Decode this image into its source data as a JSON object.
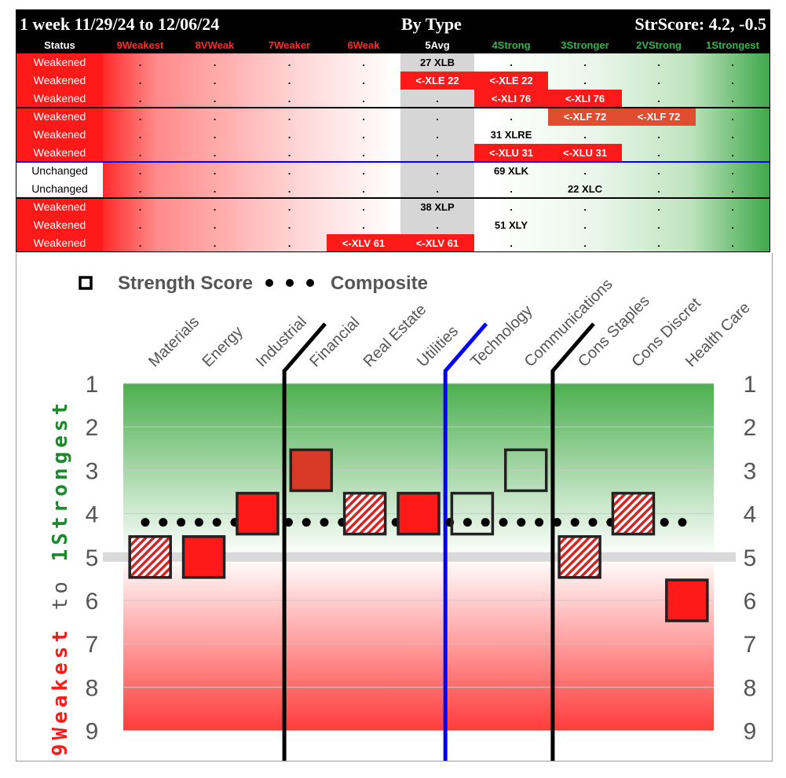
{
  "title": {
    "left": "1 week 11/29/24 to 12/06/24",
    "center": "By Type",
    "right": "StrScore: 4.2, -0.5"
  },
  "headers": [
    "Status",
    "9Weakest",
    "8VWeak",
    "7Weaker",
    "6Weak",
    "5Avg",
    "4Strong",
    "3Stronger",
    "2VStrong",
    "1Strongest"
  ],
  "header_colors": [
    "#ffffff",
    "#ff2a2a",
    "#ff2a2a",
    "#ff2a2a",
    "#ff2a2a",
    "#ffffff",
    "#2eb84d",
    "#2eb84d",
    "#2eb84d",
    "#2eb84d"
  ],
  "colors": {
    "weakened": "#ff1a1a",
    "unchanged": "#ffffff",
    "avg_col": "#d6d6d6",
    "highlight": "#ff1a1a",
    "highlight_mid": "#e24d32"
  },
  "rows": [
    {
      "status": "Weakened",
      "cells": [
        {
          "col": 5,
          "text": "27 XLB"
        }
      ]
    },
    {
      "status": "Weakened",
      "cells": [
        {
          "col": 5,
          "text": "<-XLE 22",
          "hl": true
        },
        {
          "col": 6,
          "text": "<-XLE 22",
          "hl": true
        }
      ]
    },
    {
      "status": "Weakened",
      "cells": [
        {
          "col": 6,
          "text": "<-XLI 76",
          "hl": true
        },
        {
          "col": 7,
          "text": "<-XLI 76",
          "hl": true
        }
      ]
    },
    {
      "status": "Weakened",
      "cells": [
        {
          "col": 7,
          "text": "<-XLF 72",
          "hl": true,
          "mid": true
        },
        {
          "col": 8,
          "text": "<-XLF 72",
          "hl": true,
          "mid": true
        }
      ]
    },
    {
      "status": "Weakened",
      "cells": [
        {
          "col": 6,
          "text": "31 XLRE"
        }
      ]
    },
    {
      "status": "Weakened",
      "cells": [
        {
          "col": 6,
          "text": "<-XLU 31",
          "hl": true
        },
        {
          "col": 7,
          "text": "<-XLU 31",
          "hl": true
        }
      ]
    },
    {
      "status": "Unchanged",
      "cells": [
        {
          "col": 6,
          "text": "69 XLK"
        }
      ]
    },
    {
      "status": "Unchanged",
      "cells": [
        {
          "col": 7,
          "text": "22 XLC"
        }
      ]
    },
    {
      "status": "Weakened",
      "cells": [
        {
          "col": 5,
          "text": "38 XLP"
        }
      ]
    },
    {
      "status": "Weakened",
      "cells": [
        {
          "col": 6,
          "text": "51 XLY"
        }
      ]
    },
    {
      "status": "Weakened",
      "cells": [
        {
          "col": 4,
          "text": "<-XLV 61",
          "hl": true
        },
        {
          "col": 5,
          "text": "<-XLV 61",
          "hl": true
        }
      ]
    }
  ],
  "dot_char": ".",
  "chart_data": {
    "type": "scatter",
    "legend": {
      "square_label": "Strength Score",
      "dots_label": "Composite",
      "position": "top-left"
    },
    "categories": [
      "Materials",
      "Energy",
      "Industrial",
      "Financial",
      "Real Estate",
      "Utilities",
      "Technology",
      "Communications",
      "Cons Staples",
      "Cons Discret",
      "Health Care"
    ],
    "strength_scores": [
      5,
      5,
      4,
      3,
      4,
      4,
      4,
      3,
      5,
      4,
      6
    ],
    "styles": [
      "hatched",
      "solid",
      "solid",
      "solid-dark",
      "hatched",
      "solid",
      "hollow",
      "hollow",
      "hatched",
      "hatched",
      "solid"
    ],
    "composite": 4.2,
    "y_ticks": [
      "1",
      "2",
      "3",
      "4",
      "5",
      "6",
      "7",
      "8",
      "9"
    ],
    "ylim": [
      1,
      9
    ],
    "y_reference": 5,
    "ylabel_top": "1Strongest",
    "ylabel_mid": "to",
    "ylabel_bottom": "9Weakest",
    "ylabel_colors": {
      "top": "#1a8a2a",
      "mid": "#555555",
      "bottom": "#ff1a1a"
    },
    "group_dividers": [
      {
        "after_index": 2,
        "color": "#000000"
      },
      {
        "after_index": 5,
        "color": "#0000ff"
      },
      {
        "after_index": 7,
        "color": "#000000"
      }
    ]
  }
}
